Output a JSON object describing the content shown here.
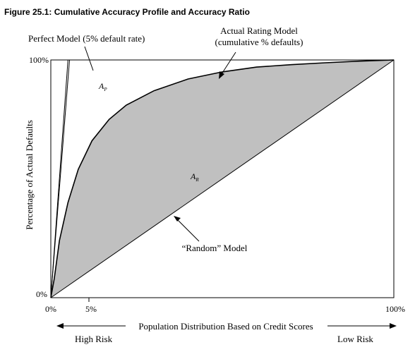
{
  "figure_title": "Figure 25.1: Cumulative Accuracy Profile and Accuracy Ratio",
  "chart_data": {
    "type": "area",
    "title": "Figure 25.1: Cumulative Accuracy Profile and Accuracy Ratio",
    "xlabel": "Population Distribution Based on Credit Scores",
    "ylabel": "Percentage of Actual Defaults",
    "x_ticks": [
      "0%",
      "5%",
      "100%"
    ],
    "y_ticks": [
      "0%",
      "100%"
    ],
    "xlim": [
      0,
      100
    ],
    "ylim": [
      0,
      100
    ],
    "x_ends": {
      "left": "High Risk",
      "right": "Low Risk"
    },
    "series": [
      {
        "name": "Perfect Model (5% default rate)",
        "points": [
          [
            0,
            0
          ],
          [
            5,
            100
          ]
        ],
        "color": "#000000"
      },
      {
        "name": "Actual Rating Model",
        "name_line2": "(cumulative % defaults)",
        "points": [
          [
            0,
            0
          ],
          [
            1,
            8
          ],
          [
            2.5,
            24
          ],
          [
            5,
            40
          ],
          [
            8,
            54
          ],
          [
            12,
            66
          ],
          [
            17,
            75
          ],
          [
            22,
            81
          ],
          [
            30,
            87
          ],
          [
            40,
            92
          ],
          [
            50,
            95
          ],
          [
            60,
            97
          ],
          [
            70,
            98
          ],
          [
            80,
            98.8
          ],
          [
            90,
            99.5
          ],
          [
            100,
            100
          ]
        ],
        "color": "#000000"
      },
      {
        "name": "“Random” Model",
        "points": [
          [
            0,
            0
          ],
          [
            100,
            100
          ]
        ],
        "color": "#000000"
      }
    ],
    "area_fill": "#c0c0c0",
    "area_labels": [
      {
        "main": "A",
        "sub": "P"
      },
      {
        "main": "A",
        "sub": "R"
      }
    ],
    "grid": false
  }
}
